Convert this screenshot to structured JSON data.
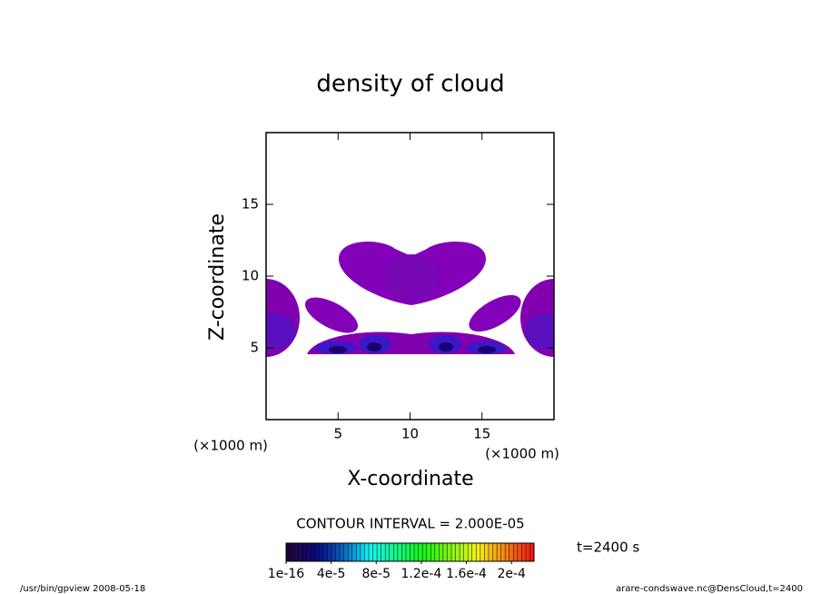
{
  "chart_data": {
    "type": "contour",
    "title": "density of cloud",
    "xlabel": "X-coordinate",
    "ylabel": "Z-coordinate",
    "x_unit_label": "(×1000 m)",
    "y_unit_label": "(×1000 m)",
    "xlim": [
      0,
      20
    ],
    "ylim": [
      0,
      20
    ],
    "xticks": [
      5,
      10,
      15
    ],
    "yticks": [
      5,
      10,
      15
    ],
    "contour_interval": "CONTOUR INTERVAL = 2.000E-05",
    "colorbar_lim": [
      0,
      0.00022
    ],
    "colorbar_ticks": [
      {
        "value": 1e-16,
        "label": "1e-16"
      },
      {
        "value": 4e-05,
        "label": "4e-5"
      },
      {
        "value": 8e-05,
        "label": "8e-5"
      },
      {
        "value": 0.00012,
        "label": "1.2e-4"
      },
      {
        "value": 0.00016,
        "label": "1.6e-4"
      },
      {
        "value": 0.0002,
        "label": "2e-4"
      }
    ],
    "time_label": "t=2400 s",
    "footer_left": "/usr/bin/gpview   2008-05-18",
    "footer_right": "arare-condswave.nc@DensCloud,t=2400"
  }
}
